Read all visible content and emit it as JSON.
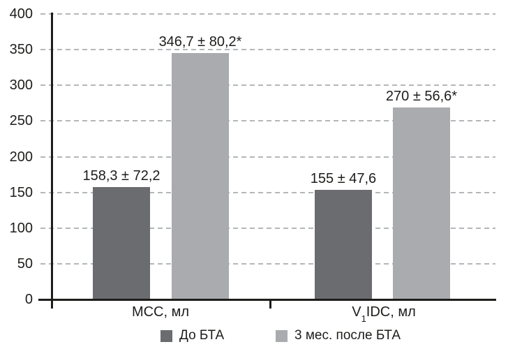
{
  "chart_data": {
    "type": "bar",
    "categories": [
      "МСС, мл",
      "V₁IDC, мл"
    ],
    "categories_rich": [
      {
        "pre": "МСС, мл",
        "sub": "",
        "post": ""
      },
      {
        "pre": "V",
        "sub": "1",
        "post": "IDC, мл"
      }
    ],
    "series": [
      {
        "name": "До БТА",
        "values": [
          158.3,
          155
        ],
        "labels": [
          "158,3 ± 72,2",
          "155 ± 47,6"
        ],
        "color": "#6a6c6f"
      },
      {
        "name": "3 мес. после БТА",
        "values": [
          346.7,
          270
        ],
        "labels": [
          "346,7 ± 80,2*",
          "270 ± 56,6*"
        ],
        "color": "#a9abae"
      }
    ],
    "title": "",
    "xlabel": "",
    "ylabel": "",
    "ylim": [
      0,
      400
    ],
    "ytick_step": 50,
    "yticks": [
      0,
      50,
      100,
      150,
      200,
      250,
      300,
      350,
      400
    ],
    "grid": "horizontal-dashed",
    "legend_position": "bottom"
  },
  "colors": {
    "axis": "#1d1d1b",
    "grid": "#b4b6b9",
    "text": "#1d1d1b",
    "background": "#ffffff",
    "bar_before": "#6a6c6f",
    "bar_after": "#a9abae"
  }
}
